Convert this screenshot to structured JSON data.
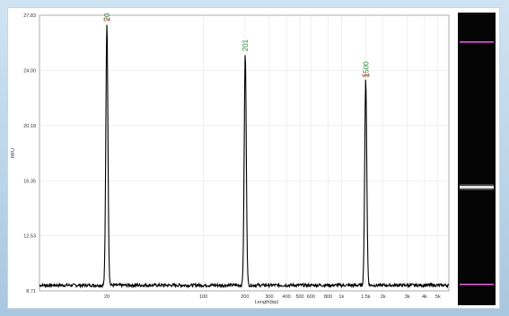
{
  "chart_data": {
    "type": "line",
    "xlabel": "Length(bp)",
    "ylabel": "RFU",
    "x_scale": "log",
    "grid": true,
    "yticks": [
      8.71,
      12.53,
      16.35,
      20.18,
      24.0,
      27.83
    ],
    "ylim": [
      8.71,
      27.83
    ],
    "xticks": [
      {
        "value": 20,
        "label": "20"
      },
      {
        "value": 100,
        "label": "100"
      },
      {
        "value": 200,
        "label": "200"
      },
      {
        "value": 300,
        "label": "300"
      },
      {
        "value": 400,
        "label": "400"
      },
      {
        "value": 500,
        "label": "500"
      },
      {
        "value": 600,
        "label": "600"
      },
      {
        "value": 800,
        "label": "800"
      },
      {
        "value": 1000,
        "label": "1k"
      },
      {
        "value": 1500,
        "label": "1.5k"
      },
      {
        "value": 2000,
        "label": "2k"
      },
      {
        "value": 3000,
        "label": "3k"
      },
      {
        "value": 4000,
        "label": "4k"
      },
      {
        "value": 5000,
        "label": "5k"
      }
    ],
    "xlim": [
      6.5,
      6000
    ],
    "baseline": 9.1,
    "peaks": [
      {
        "x": 20,
        "y": 27.3,
        "label": "20",
        "marker": "LM"
      },
      {
        "x": 201,
        "y": 25.2,
        "label": "201",
        "marker": ""
      },
      {
        "x": 1500,
        "y": 23.4,
        "label": "1500",
        "marker": "UM"
      }
    ]
  },
  "gel": {
    "lane_color": "#050505",
    "marker_color": "#e35ad9",
    "band_color": "#f2f2f2",
    "markers": [
      {
        "x": 1500,
        "role": "upper"
      },
      {
        "x": 20,
        "role": "lower"
      }
    ],
    "bands": [
      {
        "x": 201
      }
    ]
  }
}
